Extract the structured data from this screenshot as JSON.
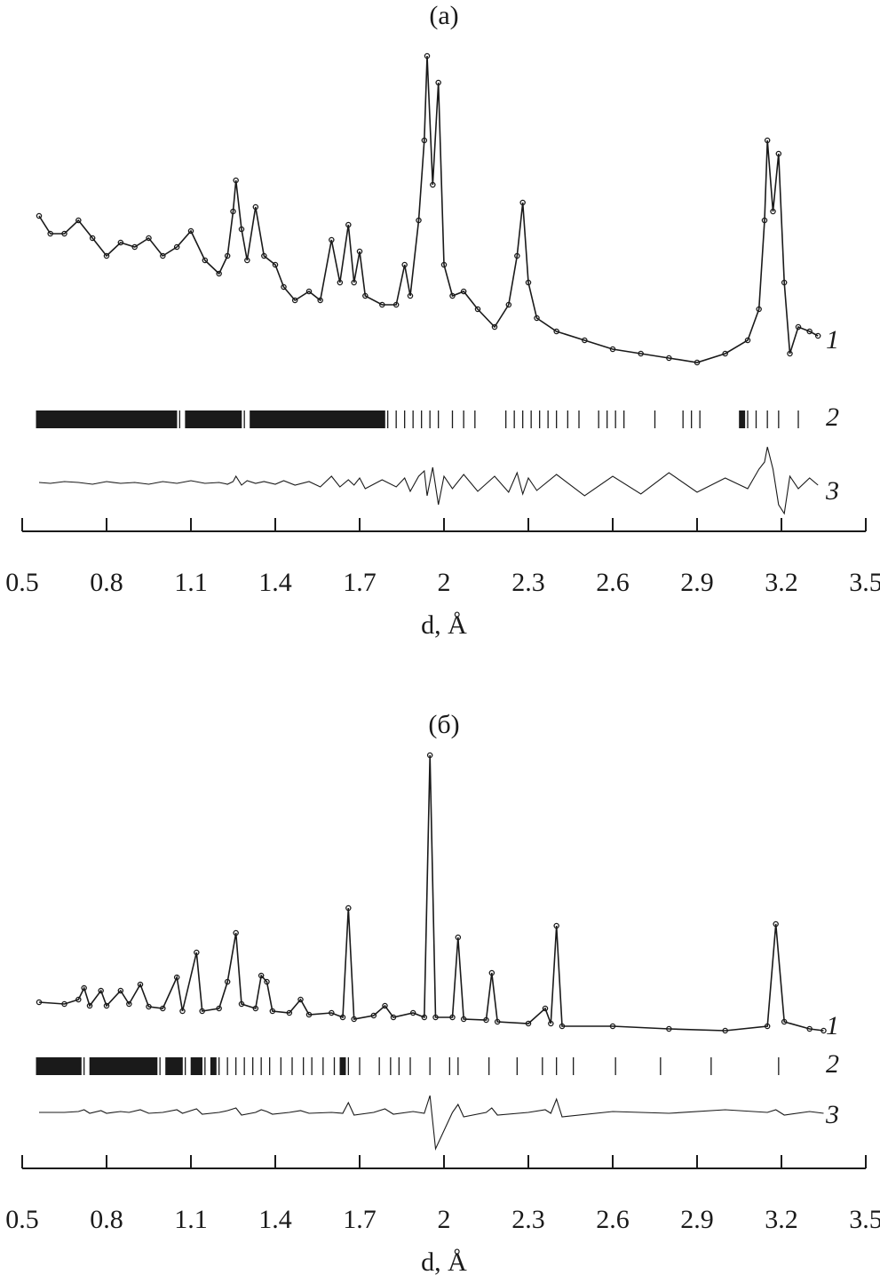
{
  "chart_data": [
    {
      "type": "diffraction",
      "title": "(a)",
      "x_label": "d, Å",
      "color": "#1a1a1a",
      "xlim": [
        0.5,
        3.5
      ],
      "xticks": [
        0.5,
        0.8,
        1.1,
        1.4,
        1.7,
        2.0,
        2.3,
        2.6,
        2.9,
        3.2,
        3.5
      ],
      "ylim": [
        0,
        540
      ],
      "x": [
        0.56,
        0.6,
        0.65,
        0.7,
        0.75,
        0.8,
        0.85,
        0.9,
        0.95,
        1.0,
        1.05,
        1.1,
        1.15,
        1.2,
        1.23,
        1.25,
        1.26,
        1.28,
        1.3,
        1.33,
        1.36,
        1.4,
        1.43,
        1.47,
        1.52,
        1.56,
        1.6,
        1.63,
        1.66,
        1.68,
        1.7,
        1.72,
        1.78,
        1.83,
        1.86,
        1.88,
        1.91,
        1.93,
        1.94,
        1.96,
        1.98,
        2.0,
        2.03,
        2.07,
        2.12,
        2.18,
        2.23,
        2.26,
        2.28,
        2.3,
        2.33,
        2.4,
        2.5,
        2.6,
        2.7,
        2.8,
        2.9,
        3.0,
        3.08,
        3.12,
        3.14,
        3.15,
        3.17,
        3.19,
        3.21,
        3.23,
        3.26,
        3.3,
        3.33
      ],
      "series": [
        {
          "name": "1",
          "values": [
            355,
            335,
            335,
            350,
            330,
            310,
            325,
            320,
            330,
            310,
            320,
            338,
            305,
            290,
            310,
            360,
            395,
            340,
            305,
            365,
            310,
            300,
            275,
            260,
            270,
            260,
            328,
            280,
            345,
            280,
            315,
            265,
            255,
            255,
            300,
            265,
            350,
            440,
            535,
            390,
            505,
            300,
            265,
            270,
            250,
            230,
            255,
            310,
            370,
            280,
            240,
            225,
            215,
            205,
            200,
            195,
            190,
            200,
            215,
            250,
            350,
            440,
            360,
            425,
            280,
            200,
            230,
            225,
            220
          ]
        },
        {
          "name": "2",
          "positions": [
            0.56,
            0.58,
            0.6,
            0.62,
            0.64,
            0.66,
            0.68,
            0.7,
            0.72,
            0.74,
            0.76,
            0.78,
            0.8,
            0.82,
            0.84,
            0.86,
            0.88,
            0.9,
            0.92,
            0.94,
            0.96,
            0.98,
            1.0,
            1.02,
            1.04,
            1.06,
            1.09,
            1.11,
            1.13,
            1.15,
            1.17,
            1.19,
            1.21,
            1.23,
            1.25,
            1.27,
            1.29,
            1.32,
            1.34,
            1.36,
            1.38,
            1.4,
            1.42,
            1.44,
            1.46,
            1.48,
            1.5,
            1.52,
            1.54,
            1.56,
            1.58,
            1.6,
            1.62,
            1.64,
            1.66,
            1.68,
            1.7,
            1.72,
            1.74,
            1.76,
            1.78,
            1.8,
            1.83,
            1.86,
            1.89,
            1.92,
            1.95,
            1.98,
            2.03,
            2.07,
            2.11,
            2.22,
            2.25,
            2.28,
            2.31,
            2.34,
            2.37,
            2.4,
            2.44,
            2.48,
            2.55,
            2.58,
            2.61,
            2.64,
            2.75,
            2.85,
            2.88,
            2.91,
            3.06,
            3.08,
            3.11,
            3.15,
            3.19,
            3.26
          ]
        },
        {
          "name": "3",
          "values": [
            55,
            54,
            56,
            55,
            53,
            56,
            54,
            55,
            53,
            56,
            54,
            57,
            54,
            55,
            53,
            56,
            62,
            52,
            57,
            54,
            56,
            53,
            57,
            52,
            56,
            50,
            62,
            50,
            58,
            52,
            60,
            48,
            58,
            50,
            60,
            45,
            62,
            68,
            40,
            72,
            30,
            62,
            48,
            64,
            45,
            62,
            44,
            66,
            42,
            60,
            46,
            64,
            40,
            62,
            42,
            66,
            44,
            60,
            48,
            70,
            78,
            95,
            70,
            30,
            20,
            62,
            48,
            60,
            52
          ]
        }
      ]
    },
    {
      "type": "diffraction",
      "title": "(б)",
      "x_label": "d, Å",
      "color": "#1a1a1a",
      "xlim": [
        0.5,
        3.5
      ],
      "xticks": [
        0.5,
        0.8,
        1.1,
        1.4,
        1.7,
        2.0,
        2.3,
        2.6,
        2.9,
        3.2,
        3.5
      ],
      "ylim": [
        0,
        480
      ],
      "x": [
        0.56,
        0.65,
        0.7,
        0.72,
        0.74,
        0.78,
        0.8,
        0.85,
        0.88,
        0.92,
        0.95,
        1.0,
        1.05,
        1.07,
        1.12,
        1.14,
        1.2,
        1.23,
        1.26,
        1.28,
        1.33,
        1.35,
        1.37,
        1.39,
        1.45,
        1.49,
        1.52,
        1.6,
        1.64,
        1.66,
        1.68,
        1.75,
        1.79,
        1.82,
        1.89,
        1.93,
        1.95,
        1.97,
        2.03,
        2.05,
        2.07,
        2.15,
        2.17,
        2.19,
        2.3,
        2.36,
        2.38,
        2.4,
        2.42,
        2.6,
        2.8,
        3.0,
        3.15,
        3.18,
        3.21,
        3.3,
        3.35
      ],
      "series": [
        {
          "name": "1",
          "values": [
            187,
            185,
            190,
            203,
            183,
            200,
            183,
            200,
            185,
            207,
            182,
            180,
            215,
            177,
            243,
            177,
            180,
            210,
            265,
            185,
            180,
            217,
            210,
            177,
            175,
            190,
            173,
            175,
            170,
            293,
            168,
            172,
            183,
            170,
            175,
            170,
            465,
            170,
            170,
            260,
            168,
            167,
            220,
            165,
            163,
            180,
            163,
            273,
            160,
            160,
            157,
            155,
            160,
            275,
            165,
            157,
            155
          ]
        },
        {
          "name": "2",
          "positions": [
            0.56,
            0.58,
            0.6,
            0.62,
            0.64,
            0.66,
            0.68,
            0.7,
            0.72,
            0.75,
            0.77,
            0.79,
            0.81,
            0.83,
            0.85,
            0.87,
            0.89,
            0.91,
            0.93,
            0.95,
            0.97,
            0.99,
            1.02,
            1.04,
            1.06,
            1.08,
            1.11,
            1.13,
            1.15,
            1.18,
            1.2,
            1.23,
            1.26,
            1.29,
            1.32,
            1.35,
            1.38,
            1.42,
            1.46,
            1.5,
            1.53,
            1.57,
            1.61,
            1.64,
            1.66,
            1.7,
            1.77,
            1.81,
            1.84,
            1.88,
            1.95,
            2.02,
            2.05,
            2.16,
            2.26,
            2.35,
            2.4,
            2.46,
            2.61,
            2.77,
            2.95,
            3.19
          ]
        },
        {
          "name": "3",
          "values": [
            63,
            63,
            64,
            66,
            62,
            65,
            62,
            64,
            63,
            66,
            62,
            63,
            66,
            62,
            67,
            61,
            63,
            65,
            68,
            60,
            63,
            66,
            64,
            61,
            63,
            65,
            62,
            63,
            62,
            74,
            60,
            63,
            67,
            61,
            64,
            62,
            82,
            22,
            63,
            72,
            58,
            63,
            68,
            60,
            63,
            66,
            62,
            78,
            58,
            64,
            62,
            66,
            63,
            66,
            60,
            64,
            62
          ]
        }
      ]
    }
  ]
}
